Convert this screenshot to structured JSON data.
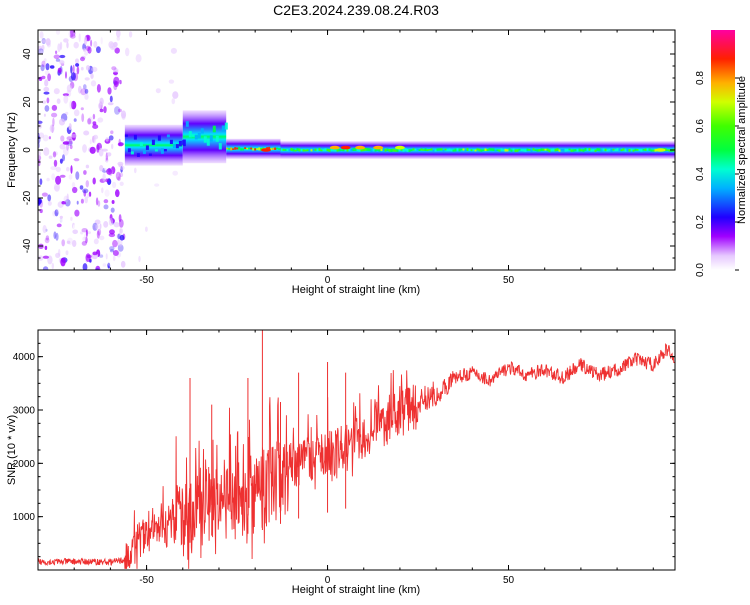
{
  "title": "C2E3.2024.239.08.24.R03",
  "chart_data": [
    {
      "type": "heatmap",
      "xlabel": "Height of straight line (km)",
      "ylabel": "Frequency (Hz)",
      "xlim": [
        -80,
        96
      ],
      "ylim": [
        -50,
        50
      ],
      "xticks": [
        -50,
        0,
        50
      ],
      "yticks": [
        -40,
        -20,
        0,
        20,
        40
      ],
      "colorbar": {
        "label": "Normalized spectral amplitude",
        "range": [
          0,
          1
        ],
        "ticks": [
          "0.0",
          "0.2",
          "0.4",
          "0.6",
          "0.8"
        ],
        "colors": [
          "#ffffff",
          "#a000ff",
          "#0000ff",
          "#00ffff",
          "#00ff00",
          "#ffff00",
          "#ff0000",
          "#ff00a0"
        ]
      },
      "regions": [
        {
          "x_range": [
            -80,
            -56
          ],
          "freq_range": [
            -50,
            50
          ],
          "pattern": "broadband scattered",
          "amplitude": 0.15
        },
        {
          "x_range": [
            -56,
            -42
          ],
          "freq_range": [
            -50,
            50
          ],
          "pattern": "sparse scattered",
          "amplitude": 0.05
        },
        {
          "x_range": [
            -56,
            -40
          ],
          "freq_range": [
            -4,
            8
          ],
          "pattern": "band",
          "amplitude": 0.35
        },
        {
          "x_range": [
            -40,
            -28
          ],
          "freq_range": [
            -3,
            14
          ],
          "pattern": "band",
          "amplitude": 0.4
        },
        {
          "x_range": [
            -28,
            -13
          ],
          "freq_range": [
            -2,
            3
          ],
          "pattern": "narrow band",
          "amplitude": 0.8
        },
        {
          "x_range": [
            -13,
            96
          ],
          "freq_range": [
            -2,
            2
          ],
          "pattern": "narrow band",
          "amplitude": 0.55
        }
      ],
      "peaks": [
        {
          "x": -17,
          "freq": 0,
          "amplitude": 0.9
        },
        {
          "x": 2,
          "freq": 1,
          "amplitude": 0.85
        },
        {
          "x": 5,
          "freq": 1,
          "amplitude": 0.9
        },
        {
          "x": 9,
          "freq": 1,
          "amplitude": 0.85
        },
        {
          "x": 14,
          "freq": 1,
          "amplitude": 0.8
        },
        {
          "x": 20,
          "freq": 1,
          "amplitude": 0.75
        },
        {
          "x": 92,
          "freq": 0,
          "amplitude": 0.75
        }
      ]
    },
    {
      "type": "line",
      "xlabel": "Height of straight line (km)",
      "ylabel": "SNR (10 * v/v)",
      "xlim": [
        -80,
        96
      ],
      "ylim": [
        0,
        4500
      ],
      "xticks": [
        -50,
        0,
        50
      ],
      "yticks": [
        1000,
        2000,
        3000,
        4000
      ],
      "series": [
        {
          "color": "#ee3030",
          "x": [
            -80,
            -70,
            -60,
            -55,
            -53,
            -50,
            -45,
            -40,
            -35,
            -30,
            -25,
            -20,
            -15,
            -10,
            -5,
            0,
            5,
            10,
            15,
            20,
            25,
            30,
            35,
            40,
            45,
            50,
            55,
            60,
            65,
            70,
            75,
            80,
            85,
            90,
            94,
            96
          ],
          "y": [
            150,
            160,
            150,
            200,
            500,
            650,
            750,
            900,
            1200,
            1350,
            1300,
            1400,
            1650,
            1850,
            2050,
            2150,
            2300,
            2500,
            2750,
            2900,
            3100,
            3250,
            3600,
            3700,
            3550,
            3800,
            3650,
            3750,
            3600,
            3850,
            3650,
            3750,
            3950,
            3850,
            4150,
            3900
          ]
        }
      ],
      "spikes": [
        {
          "x": -38,
          "y": 3600
        },
        {
          "x": -32,
          "y": 3100
        },
        {
          "x": -22,
          "y": 3600
        },
        {
          "x": -18,
          "y": 4500
        },
        {
          "x": -13,
          "y": 3150
        },
        {
          "x": -8,
          "y": 3700
        },
        {
          "x": 0,
          "y": 3900
        },
        {
          "x": 5,
          "y": 3700
        }
      ]
    }
  ]
}
